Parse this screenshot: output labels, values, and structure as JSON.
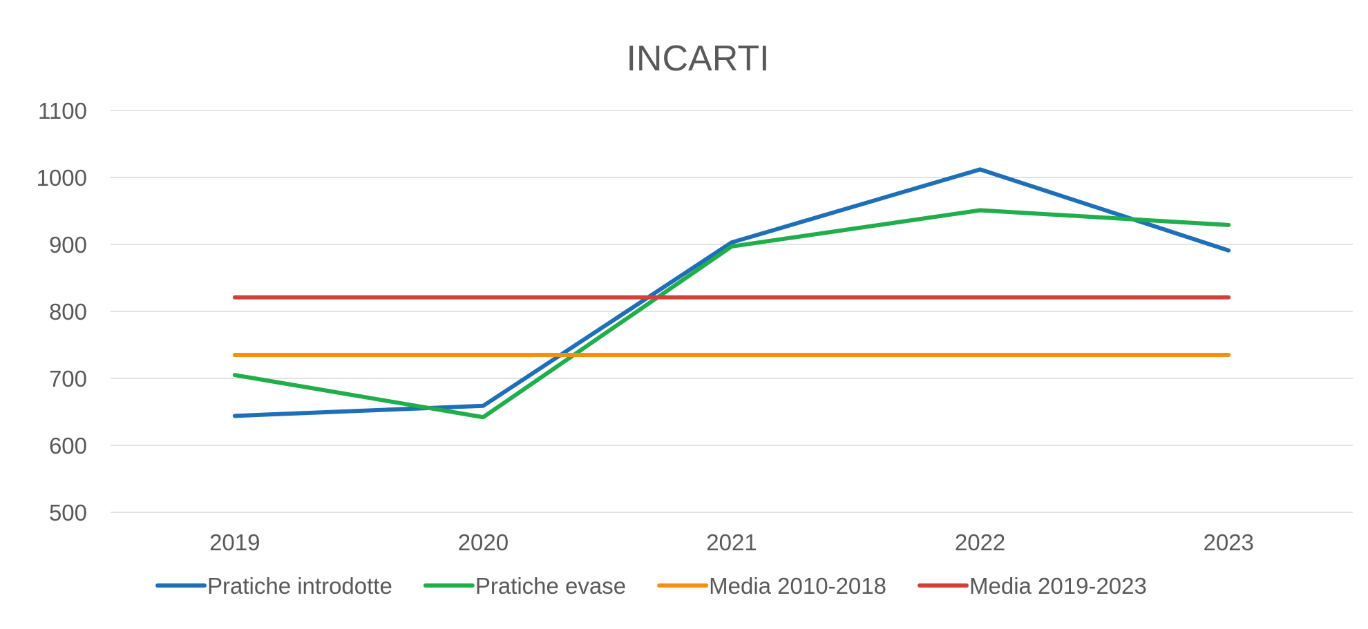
{
  "chart_data": {
    "type": "line",
    "title": "INCARTI",
    "categories": [
      "2019",
      "2020",
      "2021",
      "2022",
      "2023"
    ],
    "ylim": [
      500,
      1100
    ],
    "yticks": [
      500,
      600,
      700,
      800,
      900,
      1000,
      1100
    ],
    "grid": true,
    "legend_position": "bottom",
    "series": [
      {
        "name": "Pratiche introdotte",
        "color": "#1f6fb8",
        "values": [
          644,
          659,
          903,
          1012,
          891
        ]
      },
      {
        "name": "Pratiche evase",
        "color": "#1fae4b",
        "values": [
          705,
          642,
          897,
          951,
          929
        ]
      },
      {
        "name": "Media 2010-2018",
        "color": "#f5900d",
        "values": [
          735,
          735,
          735,
          735,
          735
        ]
      },
      {
        "name": "Media 2019-2023",
        "color": "#d43f3a",
        "values": [
          821,
          821,
          821,
          821,
          821
        ]
      }
    ]
  }
}
